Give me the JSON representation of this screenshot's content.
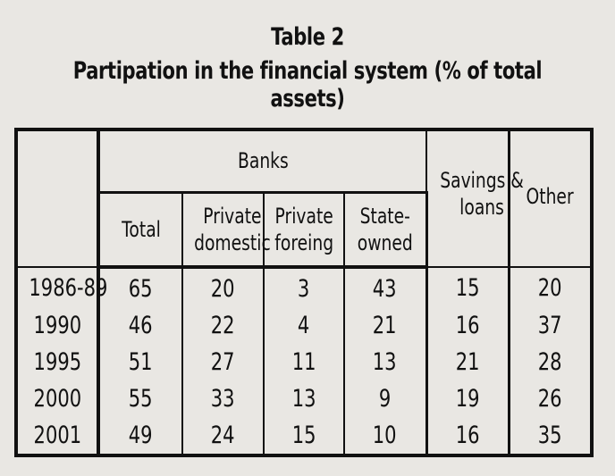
{
  "title": "Table 2",
  "subtitle": "Partipation in the financial system (% of total assets)",
  "header": {
    "banks": "Banks",
    "total": "Total",
    "private_domestic_1": "Private",
    "private_domestic_2": "domestic",
    "private_foreign_1": "Private",
    "private_foreign_2": "foreing",
    "state_owned_1": "State-",
    "state_owned_2": "owned",
    "savings_1": "Savings &",
    "savings_2": "loans",
    "other": "Other"
  },
  "rows": [
    {
      "period": "1986-89",
      "total": "65",
      "private_domestic": "20",
      "private_foreign": "3",
      "state_owned": "43",
      "savings_loans": "15",
      "other": "20"
    },
    {
      "period": "1990",
      "total": "46",
      "private_domestic": "22",
      "private_foreign": "4",
      "state_owned": "21",
      "savings_loans": "16",
      "other": "37"
    },
    {
      "period": "1995",
      "total": "51",
      "private_domestic": "27",
      "private_foreign": "11",
      "state_owned": "13",
      "savings_loans": "21",
      "other": "28"
    },
    {
      "period": "2000",
      "total": "55",
      "private_domestic": "33",
      "private_foreign": "13",
      "state_owned": "9",
      "savings_loans": "19",
      "other": "26"
    },
    {
      "period": "2001",
      "total": "49",
      "private_domestic": "24",
      "private_foreign": "15",
      "state_owned": "10",
      "savings_loans": "16",
      "other": "35"
    }
  ]
}
